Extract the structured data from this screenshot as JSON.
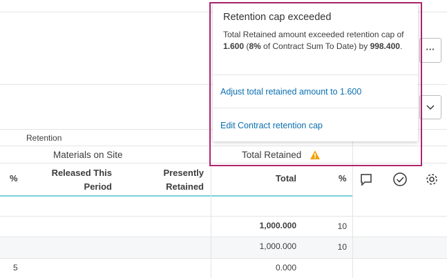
{
  "table": {
    "group_header": "Retention",
    "subgroups": [
      "Materials on Site",
      "Total Retained"
    ],
    "columns": [
      "%",
      "Released This Period",
      "Presently Retained",
      "Total",
      "%"
    ],
    "rows": [
      [
        "",
        ""
      ],
      [
        "1,000.000",
        "10"
      ],
      [
        "1,000.000",
        "10"
      ],
      [
        "5",
        "0.000"
      ]
    ]
  },
  "popup": {
    "title": "Retention cap exceeded",
    "message": [
      "Total Retained amount exceeded retention cap of ",
      "1.600",
      " (",
      "8%",
      " of Contract Sum To Date) by ",
      "998.400",
      "."
    ],
    "actions": [
      "Adjust total retained amount to 1.600",
      "Edit Contract retention cap"
    ]
  },
  "toolbar": {
    "more": "···"
  }
}
